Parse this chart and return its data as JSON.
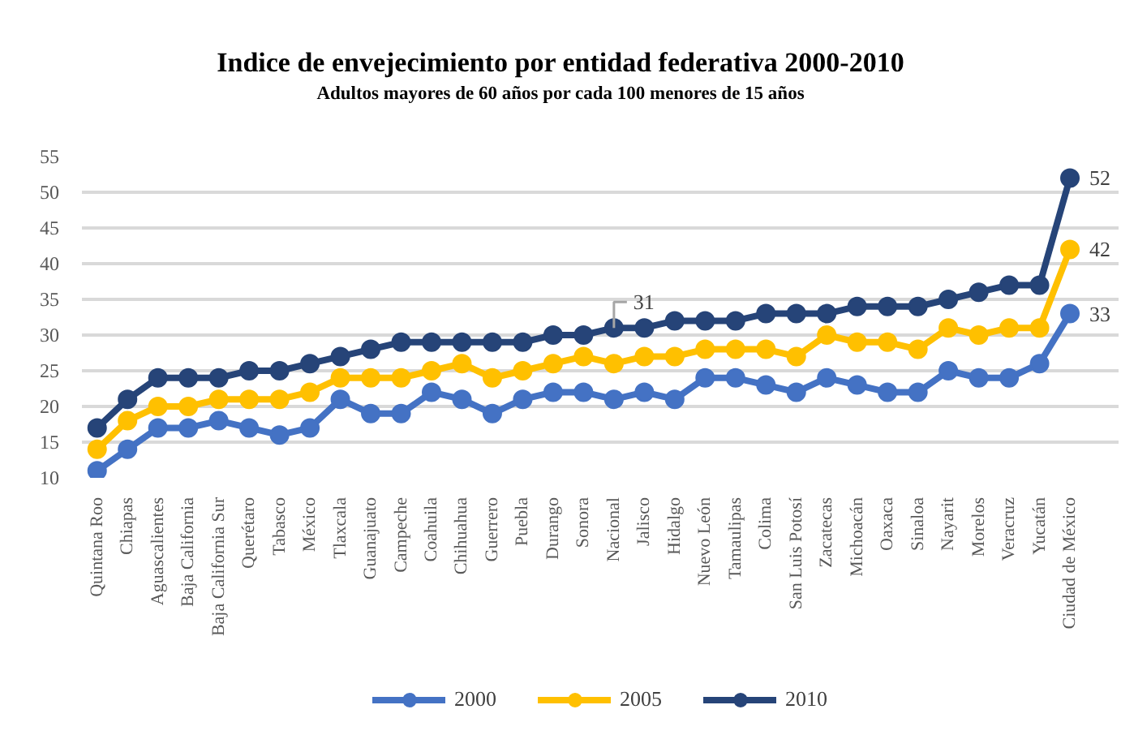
{
  "chart_data": {
    "type": "line",
    "title": "Indice de envejecimiento por entidad federativa 2000-2010",
    "subtitle": "Adultos mayores de 60 años por cada 100 menores de 15 años",
    "categories": [
      "Quintana Roo",
      "Chiapas",
      "Aguascalientes",
      "Baja California",
      "Baja California Sur",
      "Querétaro",
      "Tabasco",
      "México",
      "Tlaxcala",
      "Guanajuato",
      "Campeche",
      "Coahuila",
      "Chihuahua",
      "Guerrero",
      "Puebla",
      "Durango",
      "Sonora",
      "Nacional",
      "Jalisco",
      "Hidalgo",
      "Nuevo León",
      "Tamaulipas",
      "Colima",
      "San Luis Potosí",
      "Zacatecas",
      "Michoacán",
      "Oaxaca",
      "Sinaloa",
      "Nayarit",
      "Morelos",
      "Veracruz",
      "Yucatán",
      "Ciudad de México"
    ],
    "series": [
      {
        "name": "2000",
        "color": "#4472c4",
        "values": [
          11,
          14,
          17,
          17,
          18,
          17,
          16,
          17,
          21,
          19,
          19,
          22,
          21,
          19,
          21,
          22,
          22,
          21,
          22,
          21,
          24,
          24,
          23,
          22,
          24,
          23,
          22,
          22,
          25,
          24,
          24,
          26,
          33
        ],
        "value_labels": [
          null,
          null,
          null,
          null,
          null,
          null,
          null,
          null,
          null,
          null,
          null,
          null,
          null,
          null,
          null,
          null,
          null,
          null,
          null,
          null,
          null,
          null,
          null,
          null,
          null,
          null,
          null,
          null,
          null,
          null,
          null,
          null,
          "33"
        ]
      },
      {
        "name": "2005",
        "color": "#ffc000",
        "values": [
          14,
          18,
          20,
          20,
          21,
          21,
          21,
          22,
          24,
          24,
          24,
          25,
          26,
          24,
          25,
          26,
          27,
          26,
          27,
          27,
          28,
          28,
          28,
          27,
          30,
          29,
          29,
          28,
          31,
          30,
          31,
          31,
          42
        ],
        "value_labels": [
          null,
          null,
          null,
          null,
          null,
          null,
          null,
          null,
          null,
          null,
          null,
          null,
          null,
          null,
          null,
          null,
          null,
          null,
          null,
          null,
          null,
          null,
          null,
          null,
          null,
          null,
          null,
          null,
          null,
          null,
          null,
          null,
          "42"
        ]
      },
      {
        "name": "2010",
        "color": "#264478",
        "values": [
          17,
          21,
          24,
          24,
          24,
          25,
          25,
          26,
          27,
          28,
          29,
          29,
          29,
          29,
          29,
          30,
          30,
          31,
          31,
          32,
          32,
          32,
          33,
          33,
          33,
          34,
          34,
          34,
          35,
          36,
          37,
          37,
          52
        ],
        "value_labels": [
          null,
          null,
          null,
          null,
          null,
          null,
          null,
          null,
          null,
          null,
          null,
          null,
          null,
          null,
          null,
          null,
          null,
          "31",
          null,
          null,
          null,
          null,
          null,
          null,
          null,
          null,
          null,
          null,
          null,
          null,
          null,
          null,
          "52"
        ]
      }
    ],
    "ylim": [
      10,
      55
    ],
    "yticks": [
      10,
      15,
      20,
      25,
      30,
      35,
      40,
      45,
      50,
      55
    ],
    "grid": "y",
    "legend": "bottom",
    "marker": "circle",
    "line_style": "solid"
  }
}
